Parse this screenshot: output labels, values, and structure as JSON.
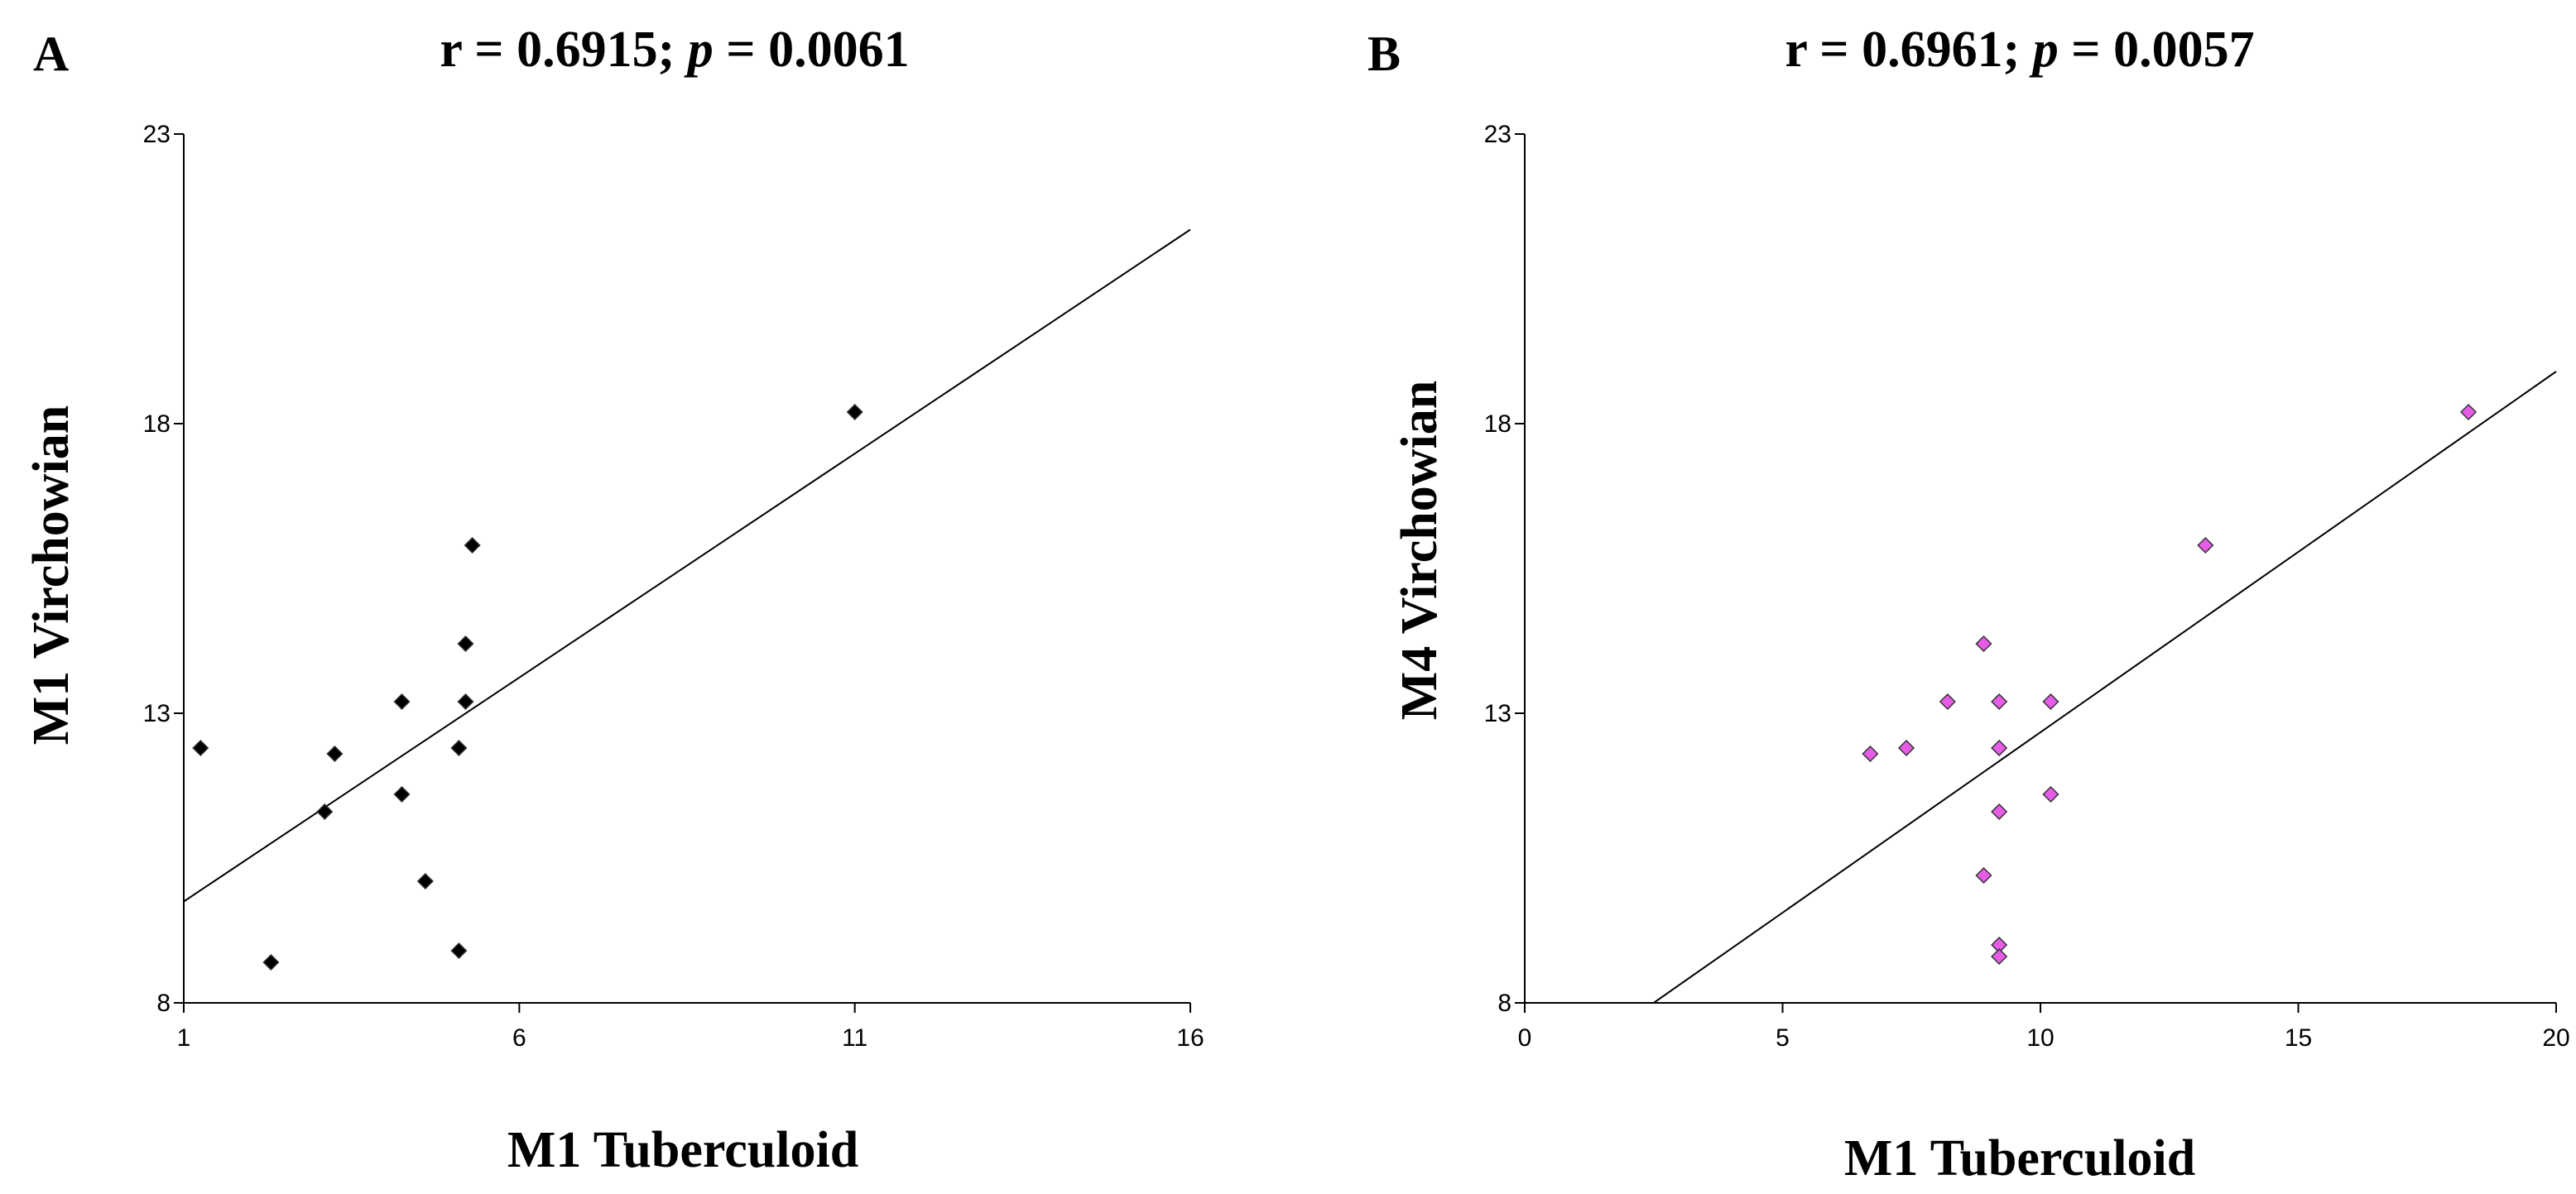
{
  "chart_data": [
    {
      "type": "scatter",
      "panel_label": "A",
      "title_prefix": "r = 0.6915; ",
      "title_p": "p",
      "title_suffix": " = 0.0061",
      "xlabel": "M1 Tuberculoid",
      "ylabel": "M1 Virchowian",
      "xlim": [
        1,
        16
      ],
      "ylim": [
        8,
        23
      ],
      "xticks": [
        1,
        6,
        11,
        16
      ],
      "yticks": [
        8,
        13,
        18,
        23
      ],
      "marker": "diamond",
      "marker_color": "#000000",
      "points": [
        {
          "x": 1.25,
          "y": 12.4
        },
        {
          "x": 2.3,
          "y": 8.7
        },
        {
          "x": 3.1,
          "y": 11.3
        },
        {
          "x": 3.25,
          "y": 12.3
        },
        {
          "x": 4.25,
          "y": 13.2
        },
        {
          "x": 4.25,
          "y": 11.6
        },
        {
          "x": 4.6,
          "y": 10.1
        },
        {
          "x": 5.1,
          "y": 12.4
        },
        {
          "x": 5.1,
          "y": 8.9
        },
        {
          "x": 5.2,
          "y": 13.2
        },
        {
          "x": 5.2,
          "y": 14.2
        },
        {
          "x": 5.3,
          "y": 15.9
        },
        {
          "x": 11.0,
          "y": 18.2
        }
      ],
      "fit_line": {
        "x": [
          1,
          16
        ],
        "y": [
          9.75,
          21.35
        ]
      }
    },
    {
      "type": "scatter",
      "panel_label": "B",
      "title_prefix": "r = 0.6961; ",
      "title_p": "p",
      "title_suffix": " = 0.0057",
      "xlabel": "M1 Tuberculoid",
      "ylabel": "M4 Virchowian",
      "xlim": [
        0,
        20
      ],
      "ylim": [
        8,
        23
      ],
      "xticks": [
        0,
        5,
        10,
        15,
        20
      ],
      "yticks": [
        8,
        13,
        18,
        23
      ],
      "marker": "diamond",
      "marker_color": "#e65ce6",
      "points": [
        {
          "x": 6.7,
          "y": 12.3
        },
        {
          "x": 7.4,
          "y": 12.4
        },
        {
          "x": 8.2,
          "y": 13.2
        },
        {
          "x": 8.9,
          "y": 14.2
        },
        {
          "x": 8.9,
          "y": 10.2
        },
        {
          "x": 9.2,
          "y": 13.2
        },
        {
          "x": 9.2,
          "y": 12.4
        },
        {
          "x": 9.2,
          "y": 11.3
        },
        {
          "x": 9.2,
          "y": 9.0
        },
        {
          "x": 9.2,
          "y": 8.8
        },
        {
          "x": 10.2,
          "y": 13.2
        },
        {
          "x": 10.2,
          "y": 11.6
        },
        {
          "x": 13.2,
          "y": 15.9
        },
        {
          "x": 18.3,
          "y": 18.2
        }
      ],
      "fit_line": {
        "x": [
          2.5,
          20
        ],
        "y": [
          8.0,
          18.9
        ]
      }
    }
  ]
}
